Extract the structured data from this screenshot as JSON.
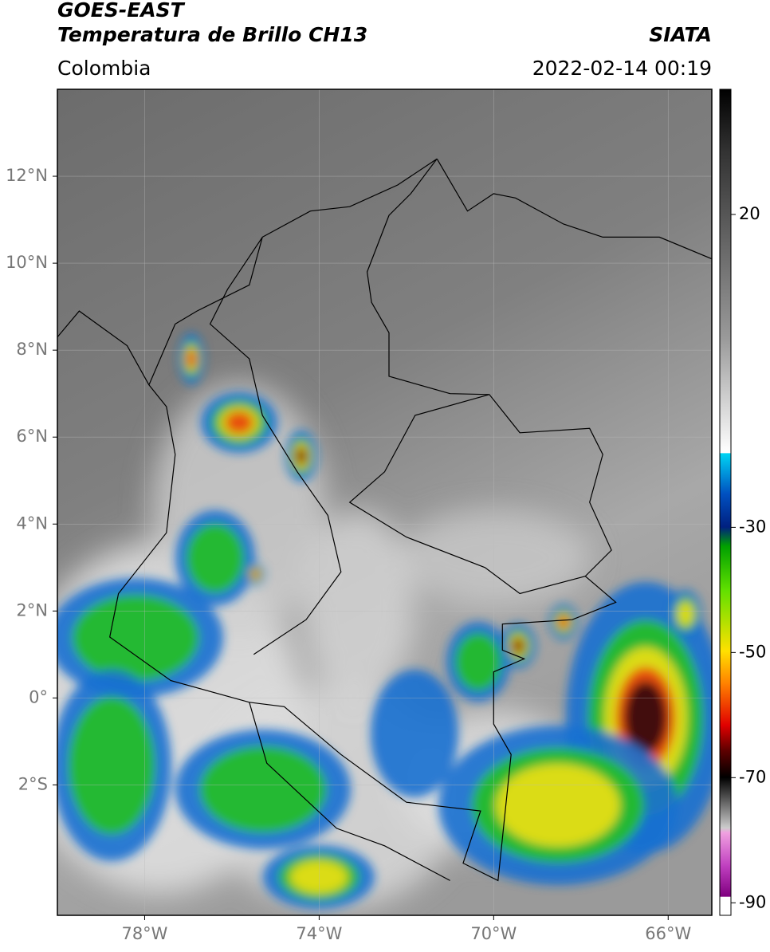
{
  "header": {
    "title_line1": "GOES-EAST",
    "title_line2": "Temperatura de Brillo CH13",
    "source": "SIATA",
    "region": "Colombia",
    "datetime": "2022-02-14 00:19"
  },
  "map": {
    "lon_range": [
      -80,
      -65
    ],
    "lat_range": [
      -5,
      14
    ],
    "lon_ticks": [
      {
        "value": -78,
        "label": "78°W"
      },
      {
        "value": -74,
        "label": "74°W"
      },
      {
        "value": -70,
        "label": "70°W"
      },
      {
        "value": -66,
        "label": "66°W"
      }
    ],
    "lat_ticks": [
      {
        "value": 12,
        "label": "12°N"
      },
      {
        "value": 10,
        "label": "10°N"
      },
      {
        "value": 8,
        "label": "8°N"
      },
      {
        "value": 6,
        "label": "6°N"
      },
      {
        "value": 4,
        "label": "4°N"
      },
      {
        "value": 2,
        "label": "2°N"
      },
      {
        "value": 0,
        "label": "0°"
      },
      {
        "value": -2,
        "label": "2°S"
      }
    ]
  },
  "colorbar": {
    "range": [
      -92,
      40
    ],
    "ticks": [
      20,
      -30,
      -50,
      -70,
      -90
    ]
  }
}
